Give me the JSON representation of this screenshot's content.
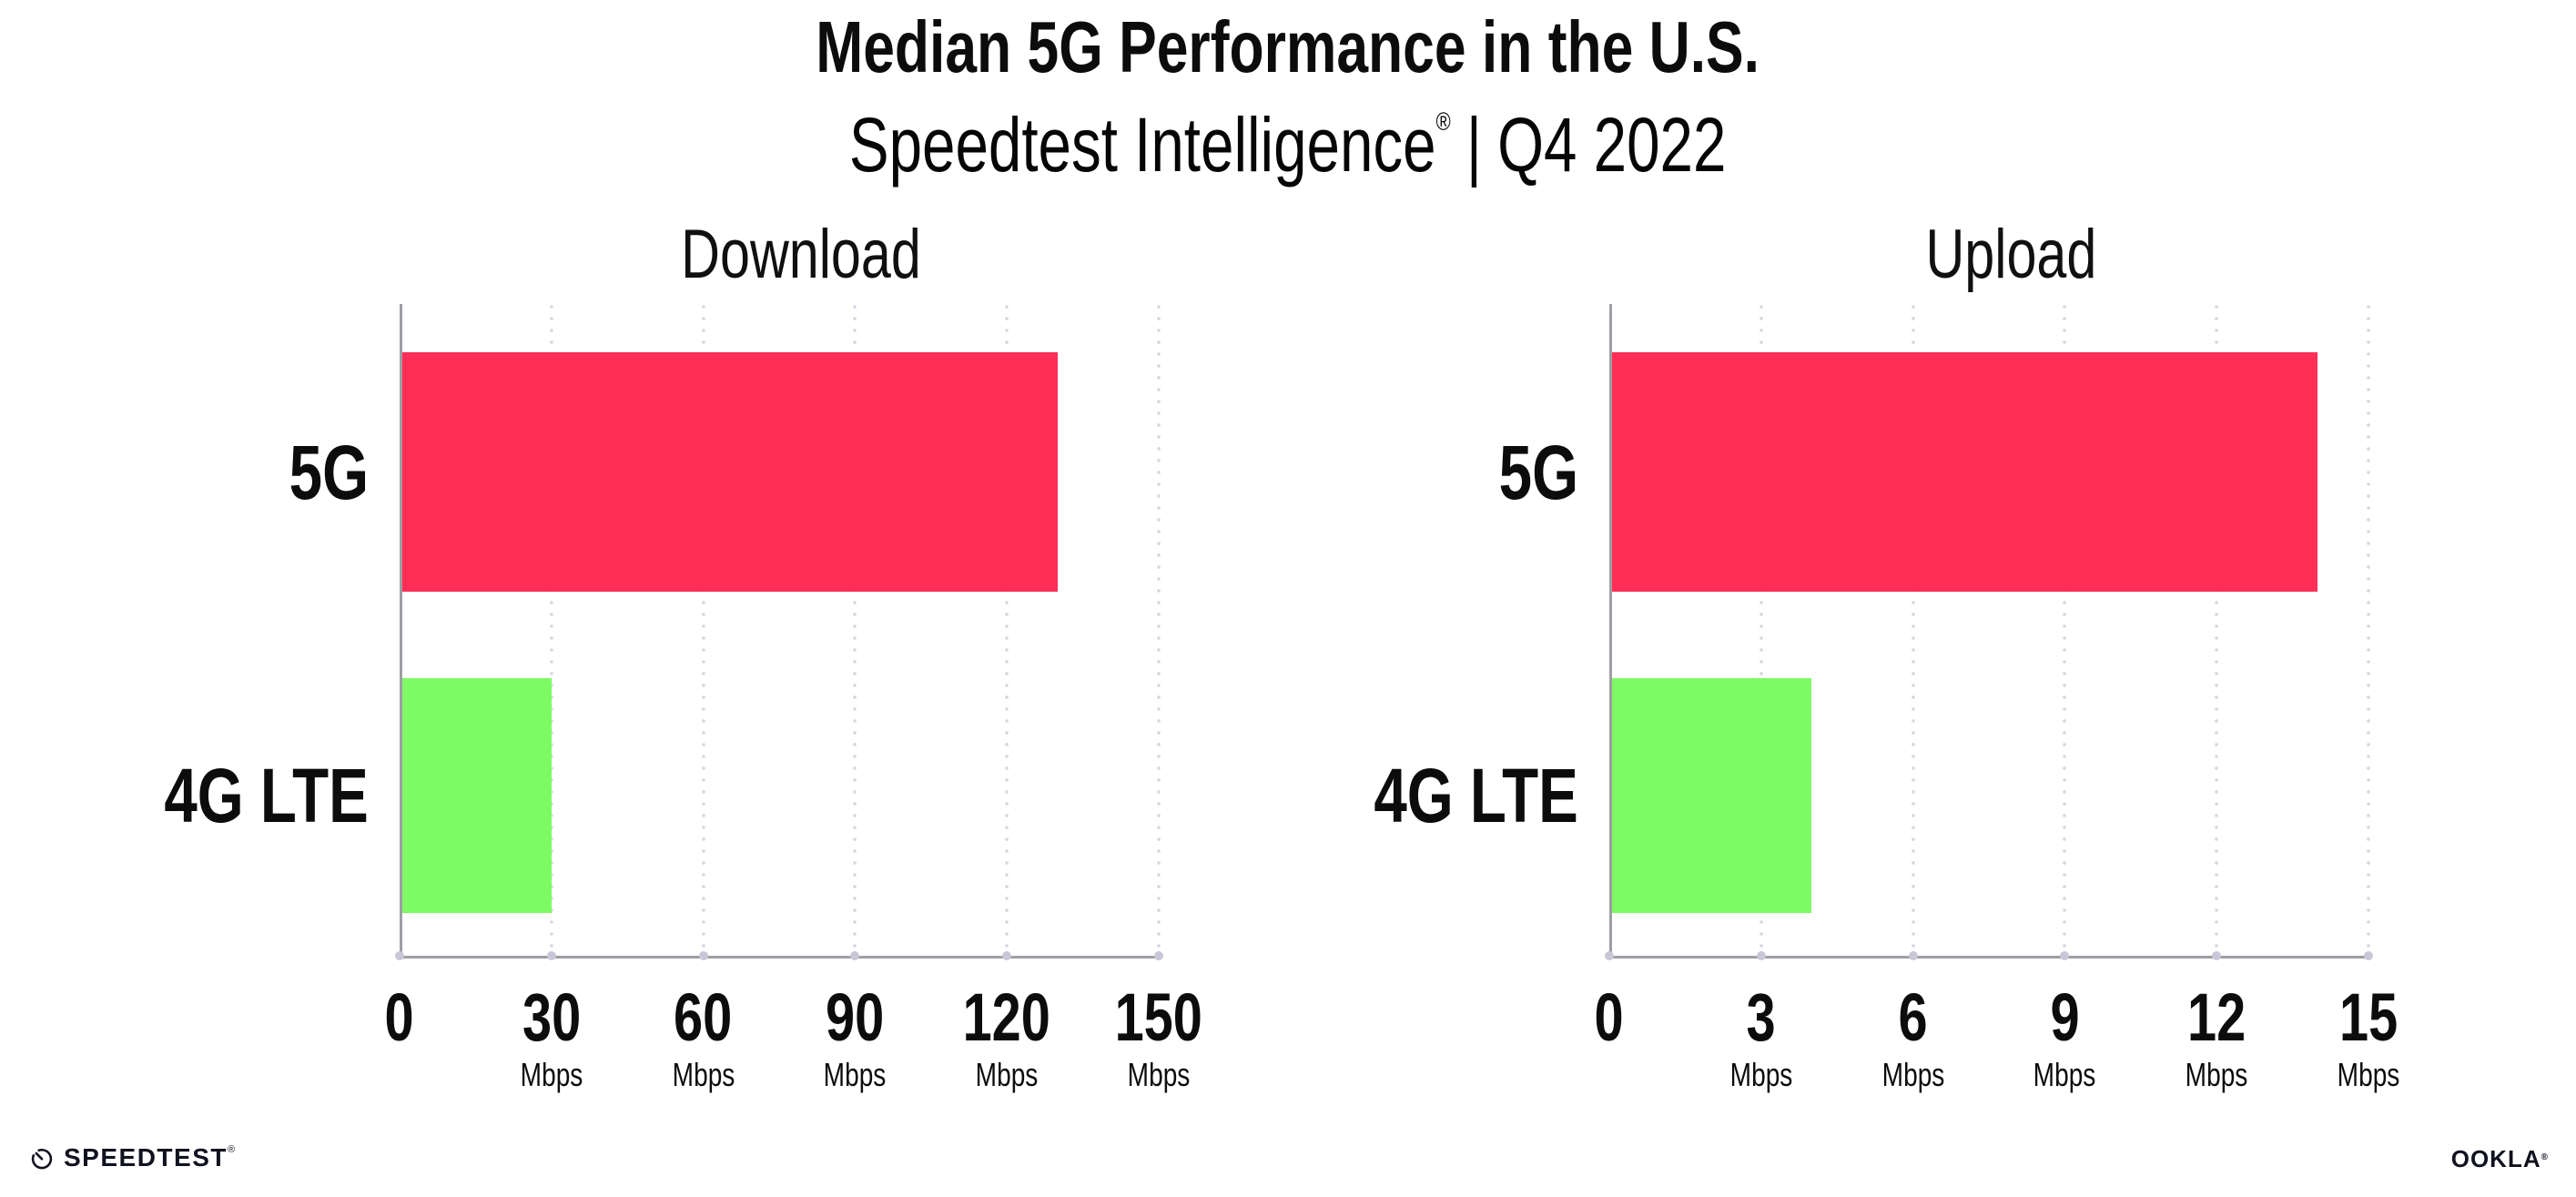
{
  "header": {
    "title": "Median 5G Performance in the U.S.",
    "subtitle": {
      "brand": "Speedtest Intelligence",
      "registered_mark": "®",
      "separator": "|",
      "period": "Q4 2022"
    }
  },
  "chart_data": [
    {
      "type": "bar",
      "orientation": "horizontal",
      "title": "Download",
      "categories": [
        "5G",
        "4G LTE"
      ],
      "values": [
        130,
        30
      ],
      "unit": "Mbps",
      "xlim": [
        0,
        150
      ],
      "xticks": [
        0,
        30,
        60,
        90,
        120,
        150
      ],
      "xtick_unit": "Mbps",
      "bar_colors": [
        "#FF2E56",
        "#7DFA64"
      ],
      "grid": "vertical-dotted",
      "legend": "none"
    },
    {
      "type": "bar",
      "orientation": "horizontal",
      "title": "Upload",
      "categories": [
        "5G",
        "4G LTE"
      ],
      "values": [
        14,
        4
      ],
      "unit": "Mbps",
      "xlim": [
        0,
        15
      ],
      "xticks": [
        0,
        3,
        6,
        9,
        12,
        15
      ],
      "xtick_unit": "Mbps",
      "bar_colors": [
        "#FF2E56",
        "#7DFA64"
      ],
      "grid": "vertical-dotted",
      "legend": "none"
    }
  ],
  "footer": {
    "speedtest_label": "SPEEDTEST",
    "speedtest_mark": "®",
    "ookla_label": "OOKLA",
    "ookla_mark": "®"
  },
  "colors": {
    "bar_5g": "#FF2E56",
    "bar_4g_lte": "#7DFA64",
    "axis": "#9E9EA4",
    "gridline": "#D9D9E5",
    "text": "#0C0C0C"
  }
}
